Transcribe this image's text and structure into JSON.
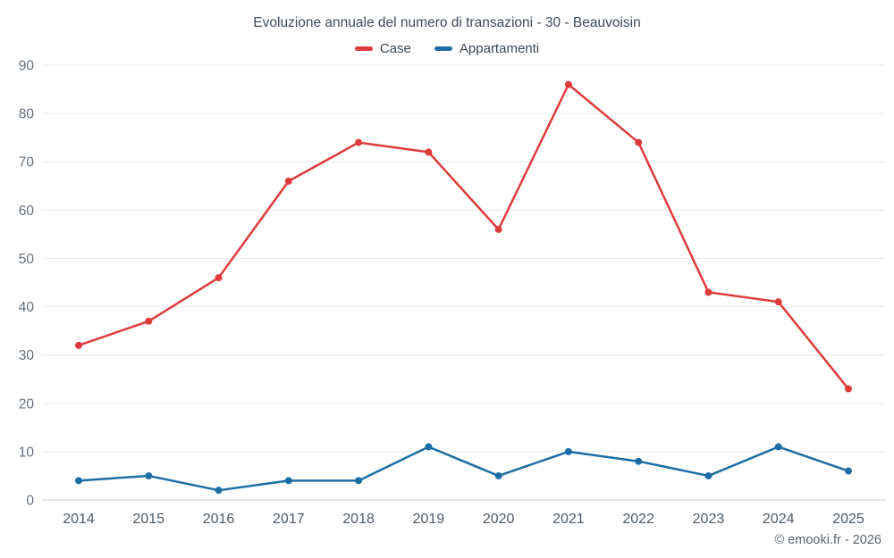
{
  "header": {
    "title": "Evoluzione annuale del numero di transazioni - 30 - Beauvoisin"
  },
  "footer": {
    "copyright": "© emooki.fr - 2026"
  },
  "chart_data": {
    "type": "line",
    "title": "Evoluzione annuale del numero di transazioni - 30 - Beauvoisin",
    "categories": [
      "2014",
      "2015",
      "2016",
      "2017",
      "2018",
      "2019",
      "2020",
      "2021",
      "2022",
      "2023",
      "2024",
      "2025"
    ],
    "series": [
      {
        "name": "Case",
        "color": "#dd3c3c",
        "values": [
          32,
          37,
          46,
          66,
          74,
          72,
          56,
          86,
          74,
          43,
          41,
          23
        ]
      },
      {
        "name": "Appartamenti",
        "color": "#1c6ea4",
        "values": [
          4,
          5,
          2,
          4,
          4,
          11,
          5,
          10,
          8,
          5,
          11,
          6
        ]
      }
    ],
    "ylim": [
      0,
      90
    ],
    "ytick_step": 10,
    "grid": true,
    "legend_position": "top",
    "xlabel": "",
    "ylabel": ""
  }
}
